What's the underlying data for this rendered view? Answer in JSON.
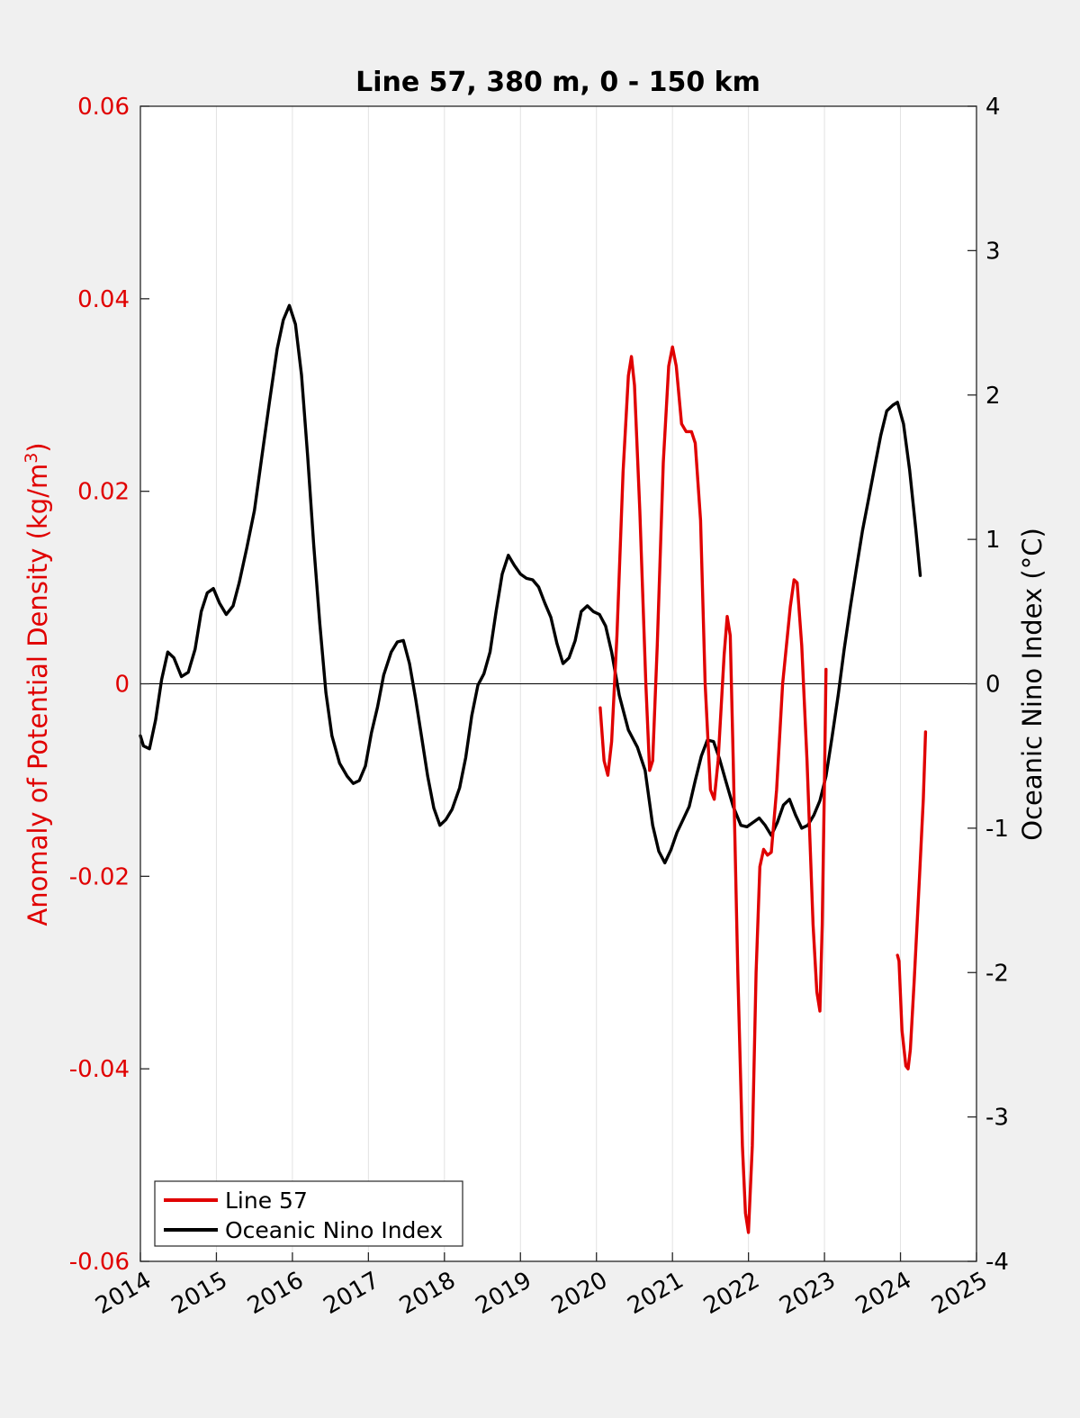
{
  "chart_data": {
    "type": "line",
    "title": "Line 57, 380 m, 0 - 150 km",
    "ylabel_left": "Anomaly of Potential Density (kg/m",
    "ylabel_left_sup": "3",
    "ylabel_left_end": ")",
    "ylabel_right": "Oceanic Nino Index (°C)",
    "xlim": [
      2014,
      2025
    ],
    "ylim_left": [
      -0.06,
      0.06
    ],
    "ylim_right": [
      -4,
      4
    ],
    "x_ticks": [
      "2014",
      "2015",
      "2016",
      "2017",
      "2018",
      "2019",
      "2020",
      "2021",
      "2022",
      "2023",
      "2024",
      "2025"
    ],
    "y_left_ticks": [
      "-0.06",
      "-0.04",
      "-0.02",
      "0",
      "0.02",
      "0.04",
      "0.06"
    ],
    "y_right_ticks": [
      "-4",
      "-3",
      "-2",
      "-1",
      "0",
      "1",
      "2",
      "3",
      "4"
    ],
    "grid": "vertical",
    "legend_position": "bottom-left",
    "colors": {
      "line57": "#e00000",
      "oni": "#000000"
    },
    "series": [
      {
        "name": "Line 57",
        "axis": "left",
        "segments": [
          [
            [
              2020.05,
              -0.0025
            ],
            [
              2020.1,
              -0.008
            ],
            [
              2020.15,
              -0.0095
            ],
            [
              2020.2,
              -0.006
            ],
            [
              2020.27,
              0.005
            ],
            [
              2020.35,
              0.022
            ],
            [
              2020.42,
              0.032
            ],
            [
              2020.46,
              0.034
            ],
            [
              2020.5,
              0.031
            ],
            [
              2020.57,
              0.018
            ],
            [
              2020.65,
              0.0
            ],
            [
              2020.7,
              -0.009
            ],
            [
              2020.74,
              -0.008
            ],
            [
              2020.8,
              0.004
            ],
            [
              2020.88,
              0.023
            ],
            [
              2020.95,
              0.033
            ],
            [
              2021.0,
              0.035
            ],
            [
              2021.05,
              0.033
            ],
            [
              2021.12,
              0.027
            ],
            [
              2021.18,
              0.0262
            ],
            [
              2021.25,
              0.0262
            ],
            [
              2021.3,
              0.025
            ],
            [
              2021.37,
              0.017
            ],
            [
              2021.43,
              0.0
            ],
            [
              2021.5,
              -0.011
            ],
            [
              2021.55,
              -0.012
            ],
            [
              2021.6,
              -0.008
            ],
            [
              2021.68,
              0.003
            ],
            [
              2021.72,
              0.007
            ],
            [
              2021.76,
              0.005
            ],
            [
              2021.8,
              -0.008
            ],
            [
              2021.86,
              -0.03
            ],
            [
              2021.92,
              -0.048
            ],
            [
              2021.96,
              -0.055
            ],
            [
              2022.0,
              -0.057
            ],
            [
              2022.05,
              -0.048
            ],
            [
              2022.1,
              -0.03
            ],
            [
              2022.15,
              -0.019
            ],
            [
              2022.2,
              -0.0172
            ],
            [
              2022.25,
              -0.0178
            ],
            [
              2022.3,
              -0.0175
            ],
            [
              2022.37,
              -0.011
            ],
            [
              2022.45,
              0.0
            ],
            [
              2022.55,
              0.008
            ],
            [
              2022.6,
              0.0108
            ],
            [
              2022.64,
              0.0105
            ],
            [
              2022.7,
              0.004
            ],
            [
              2022.77,
              -0.008
            ],
            [
              2022.85,
              -0.025
            ],
            [
              2022.9,
              -0.032
            ],
            [
              2022.94,
              -0.034
            ],
            [
              2022.97,
              -0.025
            ],
            [
              2023.0,
              -0.01
            ],
            [
              2023.02,
              0.0015
            ]
          ],
          [
            [
              2023.96,
              -0.0282
            ],
            [
              2023.98,
              -0.0288
            ],
            [
              2024.02,
              -0.036
            ],
            [
              2024.07,
              -0.0397
            ],
            [
              2024.1,
              -0.04
            ],
            [
              2024.13,
              -0.038
            ],
            [
              2024.18,
              -0.031
            ],
            [
              2024.25,
              -0.02
            ],
            [
              2024.3,
              -0.012
            ],
            [
              2024.33,
              -0.005
            ]
          ]
        ]
      },
      {
        "name": "Oceanic Nino Index",
        "axis": "right",
        "points": [
          [
            2014.0,
            -0.36
          ],
          [
            2014.04,
            -0.43
          ],
          [
            2014.12,
            -0.45
          ],
          [
            2014.2,
            -0.25
          ],
          [
            2014.28,
            0.03
          ],
          [
            2014.36,
            0.22
          ],
          [
            2014.44,
            0.18
          ],
          [
            2014.54,
            0.05
          ],
          [
            2014.63,
            0.08
          ],
          [
            2014.72,
            0.24
          ],
          [
            2014.8,
            0.5
          ],
          [
            2014.88,
            0.63
          ],
          [
            2014.96,
            0.66
          ],
          [
            2015.04,
            0.56
          ],
          [
            2015.13,
            0.48
          ],
          [
            2015.22,
            0.54
          ],
          [
            2015.3,
            0.7
          ],
          [
            2015.4,
            0.94
          ],
          [
            2015.5,
            1.2
          ],
          [
            2015.6,
            1.58
          ],
          [
            2015.7,
            1.96
          ],
          [
            2015.8,
            2.32
          ],
          [
            2015.88,
            2.52
          ],
          [
            2015.96,
            2.62
          ],
          [
            2016.04,
            2.49
          ],
          [
            2016.12,
            2.14
          ],
          [
            2016.2,
            1.58
          ],
          [
            2016.28,
            0.96
          ],
          [
            2016.36,
            0.42
          ],
          [
            2016.44,
            -0.06
          ],
          [
            2016.52,
            -0.36
          ],
          [
            2016.62,
            -0.55
          ],
          [
            2016.72,
            -0.64
          ],
          [
            2016.8,
            -0.69
          ],
          [
            2016.88,
            -0.67
          ],
          [
            2016.96,
            -0.57
          ],
          [
            2017.04,
            -0.34
          ],
          [
            2017.12,
            -0.16
          ],
          [
            2017.2,
            0.06
          ],
          [
            2017.3,
            0.22
          ],
          [
            2017.38,
            0.29
          ],
          [
            2017.46,
            0.3
          ],
          [
            2017.54,
            0.14
          ],
          [
            2017.62,
            -0.1
          ],
          [
            2017.7,
            -0.37
          ],
          [
            2017.78,
            -0.64
          ],
          [
            2017.86,
            -0.86
          ],
          [
            2017.94,
            -0.98
          ],
          [
            2018.02,
            -0.94
          ],
          [
            2018.1,
            -0.87
          ],
          [
            2018.2,
            -0.72
          ],
          [
            2018.28,
            -0.51
          ],
          [
            2018.36,
            -0.22
          ],
          [
            2018.44,
            -0.01
          ],
          [
            2018.52,
            0.07
          ],
          [
            2018.6,
            0.22
          ],
          [
            2018.68,
            0.5
          ],
          [
            2018.76,
            0.76
          ],
          [
            2018.84,
            0.89
          ],
          [
            2018.92,
            0.82
          ],
          [
            2019.0,
            0.76
          ],
          [
            2019.08,
            0.73
          ],
          [
            2019.16,
            0.72
          ],
          [
            2019.24,
            0.67
          ],
          [
            2019.32,
            0.56
          ],
          [
            2019.4,
            0.46
          ],
          [
            2019.48,
            0.28
          ],
          [
            2019.56,
            0.14
          ],
          [
            2019.64,
            0.18
          ],
          [
            2019.72,
            0.3
          ],
          [
            2019.8,
            0.5
          ],
          [
            2019.88,
            0.54
          ],
          [
            2019.96,
            0.5
          ],
          [
            2020.04,
            0.48
          ],
          [
            2020.12,
            0.4
          ],
          [
            2020.2,
            0.22
          ],
          [
            2020.3,
            -0.08
          ],
          [
            2020.42,
            -0.32
          ],
          [
            2020.54,
            -0.44
          ],
          [
            2020.64,
            -0.6
          ],
          [
            2020.74,
            -0.98
          ],
          [
            2020.82,
            -1.16
          ],
          [
            2020.9,
            -1.24
          ],
          [
            2020.98,
            -1.15
          ],
          [
            2021.06,
            -1.03
          ],
          [
            2021.14,
            -0.94
          ],
          [
            2021.22,
            -0.85
          ],
          [
            2021.3,
            -0.67
          ],
          [
            2021.38,
            -0.5
          ],
          [
            2021.46,
            -0.39
          ],
          [
            2021.54,
            -0.4
          ],
          [
            2021.62,
            -0.52
          ],
          [
            2021.7,
            -0.67
          ],
          [
            2021.8,
            -0.85
          ],
          [
            2021.9,
            -0.98
          ],
          [
            2021.98,
            -0.99
          ],
          [
            2022.06,
            -0.96
          ],
          [
            2022.14,
            -0.93
          ],
          [
            2022.22,
            -0.98
          ],
          [
            2022.3,
            -1.05
          ],
          [
            2022.38,
            -0.96
          ],
          [
            2022.46,
            -0.84
          ],
          [
            2022.54,
            -0.8
          ],
          [
            2022.62,
            -0.91
          ],
          [
            2022.7,
            -1.0
          ],
          [
            2022.78,
            -0.98
          ],
          [
            2022.86,
            -0.91
          ],
          [
            2022.94,
            -0.81
          ],
          [
            2023.02,
            -0.64
          ],
          [
            2023.1,
            -0.37
          ],
          [
            2023.18,
            -0.08
          ],
          [
            2023.26,
            0.24
          ],
          [
            2023.34,
            0.53
          ],
          [
            2023.42,
            0.8
          ],
          [
            2023.5,
            1.06
          ],
          [
            2023.58,
            1.28
          ],
          [
            2023.66,
            1.5
          ],
          [
            2023.74,
            1.72
          ],
          [
            2023.82,
            1.89
          ],
          [
            2023.9,
            1.93
          ],
          [
            2023.96,
            1.95
          ],
          [
            2024.04,
            1.8
          ],
          [
            2024.12,
            1.48
          ],
          [
            2024.2,
            1.08
          ],
          [
            2024.26,
            0.75
          ]
        ]
      }
    ]
  }
}
